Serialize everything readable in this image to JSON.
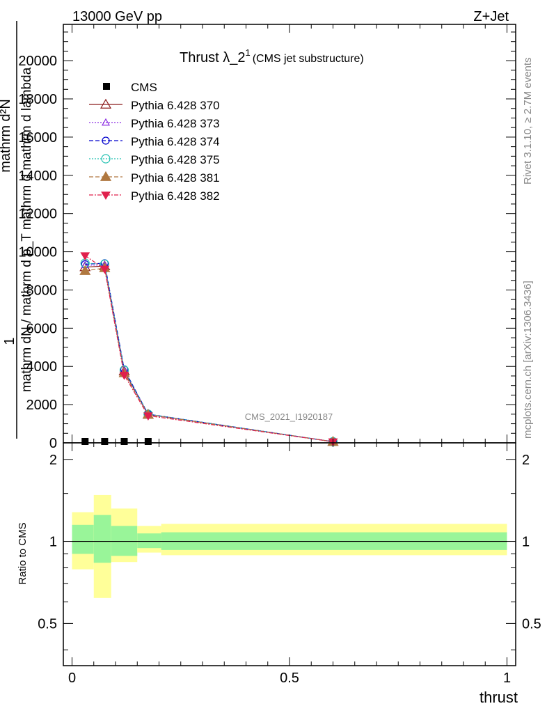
{
  "header": {
    "left": "13000 GeV pp",
    "right": "Z+Jet"
  },
  "side": {
    "rivet": "Rivet 3.1.10, ≥ 2.7M events",
    "mcplots": "mcplots.cern.ch [arXiv:1306.3436]"
  },
  "watermark": "CMS_2021_I1920187",
  "chart_data": {
    "type": "line",
    "title": "Thrust λ_2",
    "title_sup": "1",
    "title_note": "(CMS jet substructure)",
    "xlabel": "thrust",
    "ylabel_main": {
      "numerator": "1",
      "denominator": "mathrm dN / mathrm d p_T mathrm d mathrm d lambda",
      "overlap": "mathrm d²N"
    },
    "ylabel_ratio": "Ratio to CMS",
    "xlim": [
      -0.02,
      1.02
    ],
    "ylim": [
      0,
      21900
    ],
    "ratio_ylim": [
      0.35,
      2.3
    ],
    "x_ticks": [
      "0",
      "0.5",
      "1"
    ],
    "y_ticks": [
      "0",
      "2000",
      "4000",
      "6000",
      "8000",
      "10000",
      "12000",
      "14000",
      "16000",
      "18000",
      "20000"
    ],
    "ratio_ticks": [
      "0.5",
      "1",
      "2"
    ],
    "legend_position": "top-left",
    "x": [
      0.03,
      0.075,
      0.12,
      0.175,
      0.6
    ],
    "data": {
      "name": "CMS",
      "color": "#000000",
      "values": [
        0,
        0,
        0,
        0,
        0
      ]
    },
    "series": [
      {
        "name": "Pythia 6.428 370",
        "color": "#8b1a1a",
        "marker": "triangle-open",
        "dash": "",
        "values": [
          9200,
          9250,
          3750,
          1480,
          60
        ]
      },
      {
        "name": "Pythia 6.428 373",
        "color": "#8a2be2",
        "marker": "triangle-open-small",
        "dash": "2,2",
        "values": [
          9300,
          9300,
          3800,
          1500,
          60
        ]
      },
      {
        "name": "Pythia 6.428 374",
        "color": "#0000cd",
        "marker": "circle-open",
        "dash": "6,3",
        "values": [
          9350,
          9400,
          3850,
          1500,
          60
        ]
      },
      {
        "name": "Pythia 6.428 375",
        "color": "#20c0b0",
        "marker": "circle-open-large",
        "dash": "2,2",
        "values": [
          9400,
          9350,
          3800,
          1500,
          60
        ]
      },
      {
        "name": "Pythia 6.428 381",
        "color": "#b07840",
        "marker": "triangle-filled",
        "dash": "6,3",
        "values": [
          9000,
          9150,
          3650,
          1480,
          60
        ]
      },
      {
        "name": "Pythia 6.428 382",
        "color": "#e0204c",
        "marker": "triangle-down-filled",
        "dash": "6,2,2,2",
        "values": [
          9800,
          9100,
          3550,
          1420,
          60
        ]
      }
    ],
    "ratio_bands": {
      "edges": [
        0,
        0.05,
        0.09,
        0.15,
        0.205,
        1.0
      ],
      "inner_lo": [
        0.9,
        0.835,
        0.885,
        0.945,
        0.93
      ],
      "inner_hi": [
        1.15,
        1.25,
        1.14,
        1.07,
        1.08
      ],
      "outer_lo": [
        0.79,
        0.62,
        0.84,
        0.91,
        0.89
      ],
      "outer_hi": [
        1.28,
        1.48,
        1.32,
        1.14,
        1.16
      ],
      "inner_color": "#99f599",
      "outer_color": "#ffff99"
    }
  }
}
